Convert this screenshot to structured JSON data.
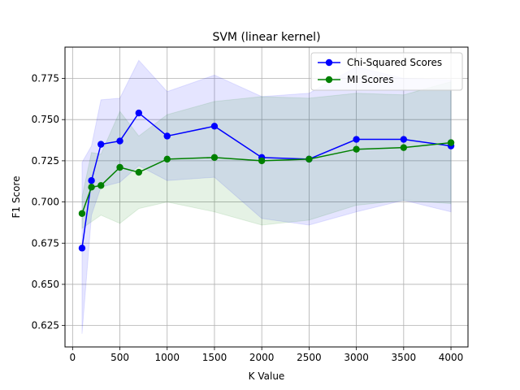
{
  "chart_data": {
    "type": "line",
    "title": "SVM (linear kernel)",
    "xlabel": "K Value",
    "ylabel": "F1 Score",
    "xlim": [
      -80,
      4180
    ],
    "ylim": [
      0.612,
      0.794
    ],
    "x_ticks": [
      0,
      500,
      1000,
      1500,
      2000,
      2500,
      3000,
      3500,
      4000
    ],
    "y_ticks": [
      0.625,
      0.65,
      0.675,
      0.7,
      0.725,
      0.75,
      0.775
    ],
    "y_tick_labels": [
      "0.625",
      "0.650",
      "0.675",
      "0.700",
      "0.725",
      "0.750",
      "0.775"
    ],
    "grid": true,
    "legend_position": "top-right",
    "x": [
      100,
      200,
      300,
      500,
      700,
      1000,
      1500,
      2000,
      2500,
      3000,
      3500,
      4000
    ],
    "series": [
      {
        "name": "Chi-Squared Scores",
        "color": "#0000ff",
        "band_color": "#0000ff",
        "values": [
          0.672,
          0.713,
          0.735,
          0.737,
          0.754,
          0.74,
          0.746,
          0.727,
          0.726,
          0.738,
          0.738,
          0.734
        ],
        "lower": [
          0.62,
          0.692,
          0.709,
          0.712,
          0.722,
          0.713,
          0.715,
          0.69,
          0.686,
          0.694,
          0.701,
          0.694
        ],
        "upper": [
          0.724,
          0.734,
          0.762,
          0.763,
          0.786,
          0.767,
          0.777,
          0.764,
          0.766,
          0.782,
          0.775,
          0.774
        ]
      },
      {
        "name": "MI Scores",
        "color": "#008000",
        "band_color": "#008000",
        "values": [
          0.693,
          0.709,
          0.71,
          0.721,
          0.718,
          0.726,
          0.727,
          0.725,
          0.726,
          0.732,
          0.733,
          0.736
        ],
        "lower": [
          0.684,
          0.688,
          0.692,
          0.687,
          0.696,
          0.7,
          0.694,
          0.686,
          0.689,
          0.698,
          0.701,
          0.699
        ],
        "upper": [
          0.703,
          0.73,
          0.729,
          0.755,
          0.74,
          0.753,
          0.761,
          0.764,
          0.763,
          0.766,
          0.765,
          0.773
        ]
      }
    ]
  }
}
